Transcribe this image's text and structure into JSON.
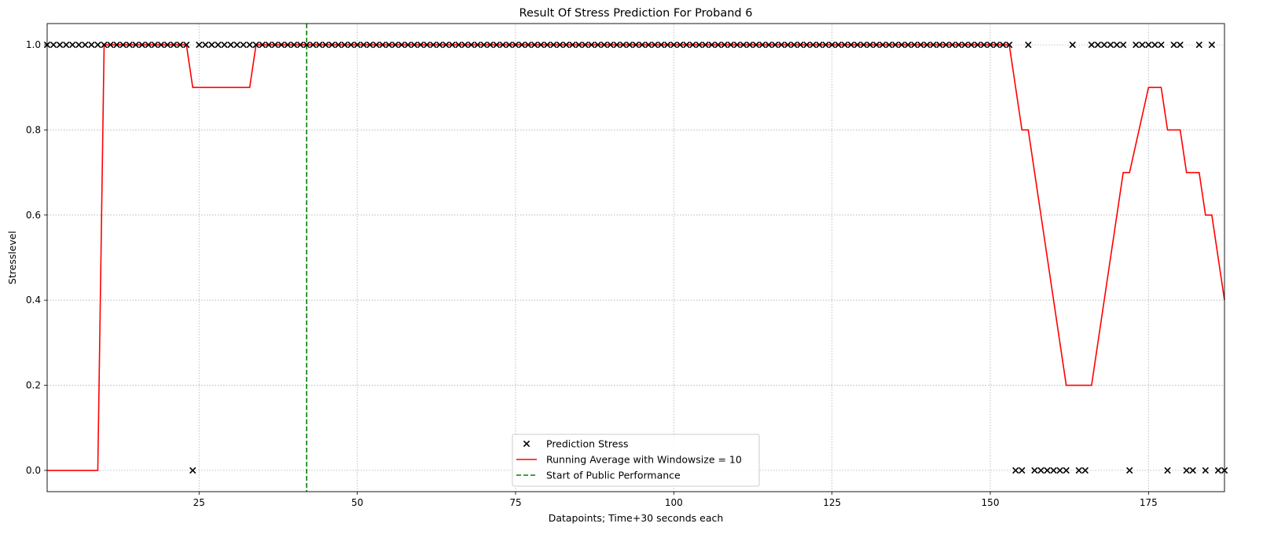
{
  "chart_data": {
    "type": "line",
    "title": "Result Of Stress Prediction For Proband 6",
    "xlabel": "Datapoints; Time+30 seconds each",
    "ylabel": "Stresslevel",
    "xlim": [
      1,
      187
    ],
    "ylim": [
      -0.05,
      1.05
    ],
    "xticks": [
      25,
      50,
      75,
      100,
      125,
      150,
      175
    ],
    "yticks": [
      0.0,
      0.2,
      0.4,
      0.6,
      0.8,
      1.0
    ],
    "grid": true,
    "legend_position": "lower center",
    "legend": [
      {
        "label": "Prediction Stress",
        "marker": "x",
        "color": "#000000"
      },
      {
        "label": "Running Average with Windowsize = 10",
        "line": "solid",
        "color": "#ff0000"
      },
      {
        "label": "Start of Public Performance",
        "line": "dashed",
        "color": "#008000"
      }
    ],
    "series": [
      {
        "name": "Prediction Stress",
        "kind": "scatter",
        "marker": "x",
        "color": "#000000",
        "x": [
          1,
          2,
          3,
          4,
          5,
          6,
          7,
          8,
          9,
          10,
          11,
          12,
          13,
          14,
          15,
          16,
          17,
          18,
          19,
          20,
          21,
          22,
          23,
          24,
          25,
          26,
          27,
          28,
          29,
          30,
          31,
          32,
          33,
          34,
          35,
          36,
          37,
          38,
          39,
          40,
          41,
          42,
          43,
          44,
          45,
          46,
          47,
          48,
          49,
          50,
          51,
          52,
          53,
          54,
          55,
          56,
          57,
          58,
          59,
          60,
          61,
          62,
          63,
          64,
          65,
          66,
          67,
          68,
          69,
          70,
          71,
          72,
          73,
          74,
          75,
          76,
          77,
          78,
          79,
          80,
          81,
          82,
          83,
          84,
          85,
          86,
          87,
          88,
          89,
          90,
          91,
          92,
          93,
          94,
          95,
          96,
          97,
          98,
          99,
          100,
          101,
          102,
          103,
          104,
          105,
          106,
          107,
          108,
          109,
          110,
          111,
          112,
          113,
          114,
          115,
          116,
          117,
          118,
          119,
          120,
          121,
          122,
          123,
          124,
          125,
          126,
          127,
          128,
          129,
          130,
          131,
          132,
          133,
          134,
          135,
          136,
          137,
          138,
          139,
          140,
          141,
          142,
          143,
          144,
          145,
          146,
          147,
          148,
          149,
          150,
          151,
          152,
          153,
          154,
          155,
          156,
          157,
          158,
          159,
          160,
          161,
          162,
          163,
          164,
          165,
          166,
          167,
          168,
          169,
          170,
          171,
          172,
          173,
          174,
          175,
          176,
          177,
          178,
          179,
          180,
          181,
          182,
          183,
          184,
          185,
          186,
          187
        ],
        "y": [
          1,
          1,
          1,
          1,
          1,
          1,
          1,
          1,
          1,
          1,
          1,
          1,
          1,
          1,
          1,
          1,
          1,
          1,
          1,
          1,
          1,
          1,
          1,
          0,
          1,
          1,
          1,
          1,
          1,
          1,
          1,
          1,
          1,
          1,
          1,
          1,
          1,
          1,
          1,
          1,
          1,
          1,
          1,
          1,
          1,
          1,
          1,
          1,
          1,
          1,
          1,
          1,
          1,
          1,
          1,
          1,
          1,
          1,
          1,
          1,
          1,
          1,
          1,
          1,
          1,
          1,
          1,
          1,
          1,
          1,
          1,
          1,
          1,
          1,
          1,
          1,
          1,
          1,
          1,
          1,
          1,
          1,
          1,
          1,
          1,
          1,
          1,
          1,
          1,
          1,
          1,
          1,
          1,
          1,
          1,
          1,
          1,
          1,
          1,
          1,
          1,
          1,
          1,
          1,
          1,
          1,
          1,
          1,
          1,
          1,
          1,
          1,
          1,
          1,
          1,
          1,
          1,
          1,
          1,
          1,
          1,
          1,
          1,
          1,
          1,
          1,
          1,
          1,
          1,
          1,
          1,
          1,
          1,
          1,
          1,
          1,
          1,
          1,
          1,
          1,
          1,
          1,
          1,
          1,
          1,
          1,
          1,
          1,
          1,
          1,
          1,
          1,
          1,
          0,
          0,
          1,
          0,
          0,
          0,
          0,
          0,
          0,
          1,
          0,
          0,
          1,
          1,
          1,
          1,
          1,
          1,
          0,
          1,
          1,
          1,
          1,
          1,
          0,
          1,
          1,
          0,
          0,
          1,
          0,
          1,
          0,
          0
        ]
      },
      {
        "name": "Running Average with Windowsize = 10",
        "kind": "line",
        "color": "#ff0000",
        "x": [
          1,
          9,
          10,
          23,
          24,
          33,
          34,
          153,
          155,
          156,
          162,
          166,
          171,
          172,
          175,
          177,
          178,
          180,
          181,
          183,
          184,
          185,
          187
        ],
        "y": [
          0,
          0,
          1,
          1,
          0.9,
          0.9,
          1,
          1,
          0.8,
          0.8,
          0.2,
          0.2,
          0.7,
          0.7,
          0.9,
          0.9,
          0.8,
          0.8,
          0.7,
          0.7,
          0.6,
          0.6,
          0.4
        ]
      },
      {
        "name": "Start of Public Performance",
        "kind": "vline",
        "color": "#008000",
        "x": 42
      }
    ]
  }
}
